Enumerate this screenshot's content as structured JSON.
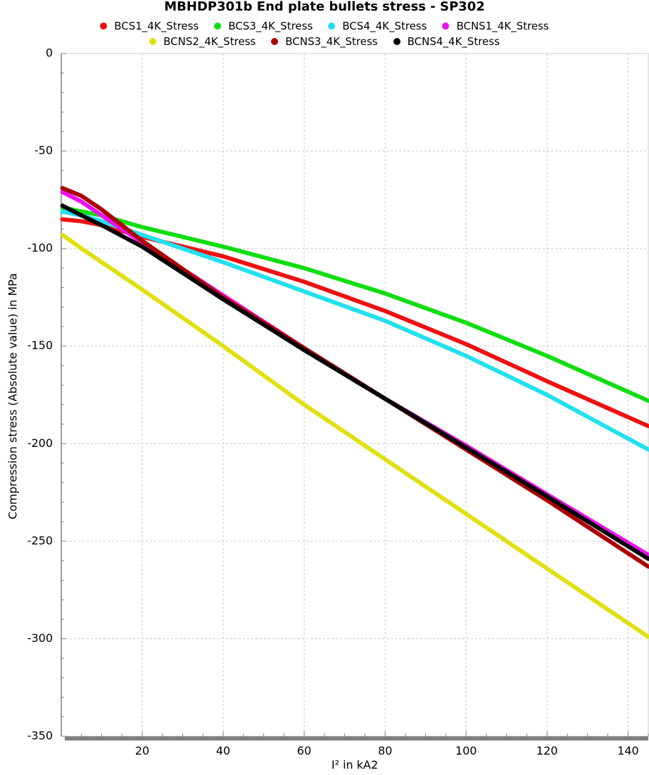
{
  "chart_data": {
    "type": "line",
    "title": "MBHDP301b End plate bullets stress - SP302",
    "xlabel": "I² in kA2",
    "ylabel": "Compression stress (Absolute value) in MPa",
    "xlim": [
      0,
      145
    ],
    "ylim": [
      -350,
      0
    ],
    "x_ticks": [
      20,
      40,
      60,
      80,
      100,
      120,
      140
    ],
    "y_ticks": [
      0,
      -50,
      -100,
      -150,
      -200,
      -250,
      -300,
      -350
    ],
    "grid": true,
    "legend_position": "top",
    "series": [
      {
        "name": "BCS1_4K_Stress",
        "color": "#ee1111",
        "x": [
          0.3,
          5,
          10,
          20,
          40,
          60,
          80,
          100,
          120,
          145
        ],
        "y": [
          -85,
          -86,
          -88,
          -94,
          -104,
          -117,
          -132,
          -149,
          -168,
          -191
        ]
      },
      {
        "name": "BCS3_4K_Stress",
        "color": "#11dd11",
        "x": [
          0.3,
          5,
          10,
          20,
          40,
          60,
          80,
          100,
          120,
          145
        ],
        "y": [
          -79,
          -81,
          -83,
          -89,
          -99,
          -110,
          -123,
          -138,
          -155,
          -178
        ]
      },
      {
        "name": "BCS4_4K_Stress",
        "color": "#22e0ee",
        "x": [
          0.3,
          5,
          10,
          20,
          40,
          60,
          80,
          100,
          120,
          145
        ],
        "y": [
          -81,
          -83,
          -86,
          -93,
          -107,
          -122,
          -137,
          -155,
          -175,
          -203
        ]
      },
      {
        "name": "BCNS1_4K_Stress",
        "color": "#ee11ee",
        "x": [
          0.3,
          5,
          10,
          20,
          40,
          60,
          80,
          100,
          120,
          145
        ],
        "y": [
          -71,
          -76,
          -83,
          -97,
          -124,
          -151,
          -177,
          -201,
          -226,
          -257
        ]
      },
      {
        "name": "BCNS2_4K_Stress",
        "color": "#e0e011",
        "x": [
          0.3,
          5,
          10,
          20,
          40,
          60,
          80,
          100,
          120,
          145
        ],
        "y": [
          -93,
          -100,
          -107,
          -121,
          -150,
          -180,
          -208,
          -236,
          -264,
          -299
        ]
      },
      {
        "name": "BCNS3_4K_Stress",
        "color": "#aa0000",
        "x": [
          0.3,
          5,
          10,
          20,
          40,
          60,
          80,
          100,
          120,
          145
        ],
        "y": [
          -69,
          -73,
          -80,
          -96,
          -125,
          -151,
          -177,
          -203,
          -229,
          -263
        ]
      },
      {
        "name": "BCNS4_4K_Stress",
        "color": "#000000",
        "x": [
          0.3,
          5,
          10,
          20,
          40,
          60,
          80,
          100,
          120,
          145
        ],
        "y": [
          -78,
          -83,
          -88,
          -99,
          -126,
          -152,
          -177,
          -202,
          -227,
          -259
        ]
      }
    ]
  }
}
